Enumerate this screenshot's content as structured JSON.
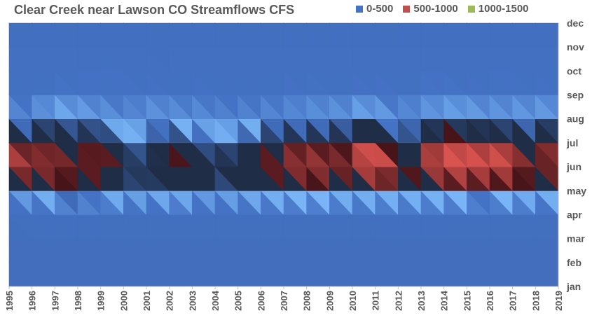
{
  "chart_data": {
    "type": "heatmap",
    "title": "Clear Creek near Lawson CO Streamflows CFS",
    "x": [
      "1995",
      "1996",
      "1997",
      "1998",
      "1999",
      "2000",
      "2001",
      "2002",
      "2003",
      "2004",
      "2005",
      "2006",
      "2007",
      "2008",
      "2009",
      "2010",
      "2011",
      "2012",
      "2013",
      "2014",
      "2015",
      "2016",
      "2017",
      "2018",
      "2019"
    ],
    "y": [
      "jan",
      "feb",
      "mar",
      "apr",
      "may",
      "jun",
      "jul",
      "aug",
      "sep",
      "oct",
      "nov",
      "dec"
    ],
    "legend": [
      {
        "label": "0-500",
        "color": "#4472c4"
      },
      {
        "label": "500-1000",
        "color": "#c0504d"
      },
      {
        "label": "1000-1500",
        "color": "#9bbb59"
      }
    ],
    "legend_position": "top-right",
    "colors": {
      "dark_blue": "#1f2d47",
      "light_blue": "#79b6f7",
      "red": "#d9534f"
    },
    "grid": false,
    "values": [
      [
        40,
        40,
        40,
        60,
        300,
        720,
        560,
        250,
        130,
        100,
        80,
        60
      ],
      [
        40,
        40,
        40,
        70,
        350,
        630,
        460,
        220,
        120,
        90,
        70,
        55
      ],
      [
        40,
        40,
        45,
        80,
        420,
        650,
        560,
        320,
        180,
        120,
        80,
        60
      ],
      [
        40,
        40,
        45,
        80,
        430,
        480,
        400,
        300,
        160,
        90,
        70,
        55
      ],
      [
        40,
        40,
        45,
        70,
        400,
        700,
        470,
        270,
        150,
        160,
        90,
        60
      ],
      [
        40,
        40,
        40,
        75,
        350,
        410,
        320,
        230,
        140,
        110,
        75,
        55
      ],
      [
        40,
        40,
        40,
        65,
        340,
        400,
        310,
        230,
        180,
        100,
        80,
        55
      ],
      [
        40,
        40,
        40,
        70,
        400,
        480,
        420,
        260,
        130,
        80,
        70,
        55
      ],
      [
        40,
        40,
        40,
        70,
        330,
        620,
        360,
        250,
        150,
        110,
        80,
        60
      ],
      [
        40,
        40,
        40,
        65,
        320,
        400,
        300,
        220,
        140,
        100,
        75,
        55
      ],
      [
        40,
        40,
        45,
        70,
        360,
        470,
        330,
        210,
        130,
        90,
        75,
        55
      ],
      [
        40,
        40,
        45,
        70,
        380,
        560,
        400,
        240,
        130,
        100,
        75,
        55
      ],
      [
        40,
        40,
        45,
        70,
        400,
        620,
        460,
        230,
        150,
        100,
        75,
        55
      ],
      [
        40,
        40,
        40,
        70,
        420,
        690,
        470,
        230,
        180,
        110,
        75,
        55
      ],
      [
        40,
        40,
        45,
        70,
        400,
        650,
        460,
        240,
        150,
        100,
        75,
        55
      ],
      [
        40,
        40,
        40,
        65,
        380,
        600,
        470,
        280,
        140,
        110,
        80,
        55
      ],
      [
        40,
        40,
        40,
        70,
        400,
        880,
        700,
        340,
        160,
        120,
        80,
        60
      ],
      [
        40,
        40,
        45,
        75,
        380,
        460,
        340,
        220,
        130,
        90,
        70,
        55
      ],
      [
        40,
        40,
        45,
        75,
        400,
        680,
        470,
        260,
        170,
        110,
        80,
        60
      ],
      [
        40,
        40,
        45,
        70,
        400,
        760,
        640,
        260,
        200,
        120,
        85,
        60
      ],
      [
        40,
        40,
        45,
        70,
        420,
        760,
        600,
        290,
        160,
        110,
        80,
        55
      ],
      [
        40,
        40,
        45,
        70,
        410,
        720,
        600,
        280,
        150,
        110,
        80,
        55
      ],
      [
        40,
        40,
        45,
        70,
        410,
        740,
        560,
        260,
        180,
        110,
        80,
        60
      ],
      [
        40,
        40,
        40,
        65,
        360,
        460,
        420,
        270,
        150,
        110,
        80,
        55
      ],
      [
        40,
        40,
        40,
        70,
        420,
        760,
        560,
        300,
        160,
        110,
        80,
        60
      ]
    ]
  }
}
